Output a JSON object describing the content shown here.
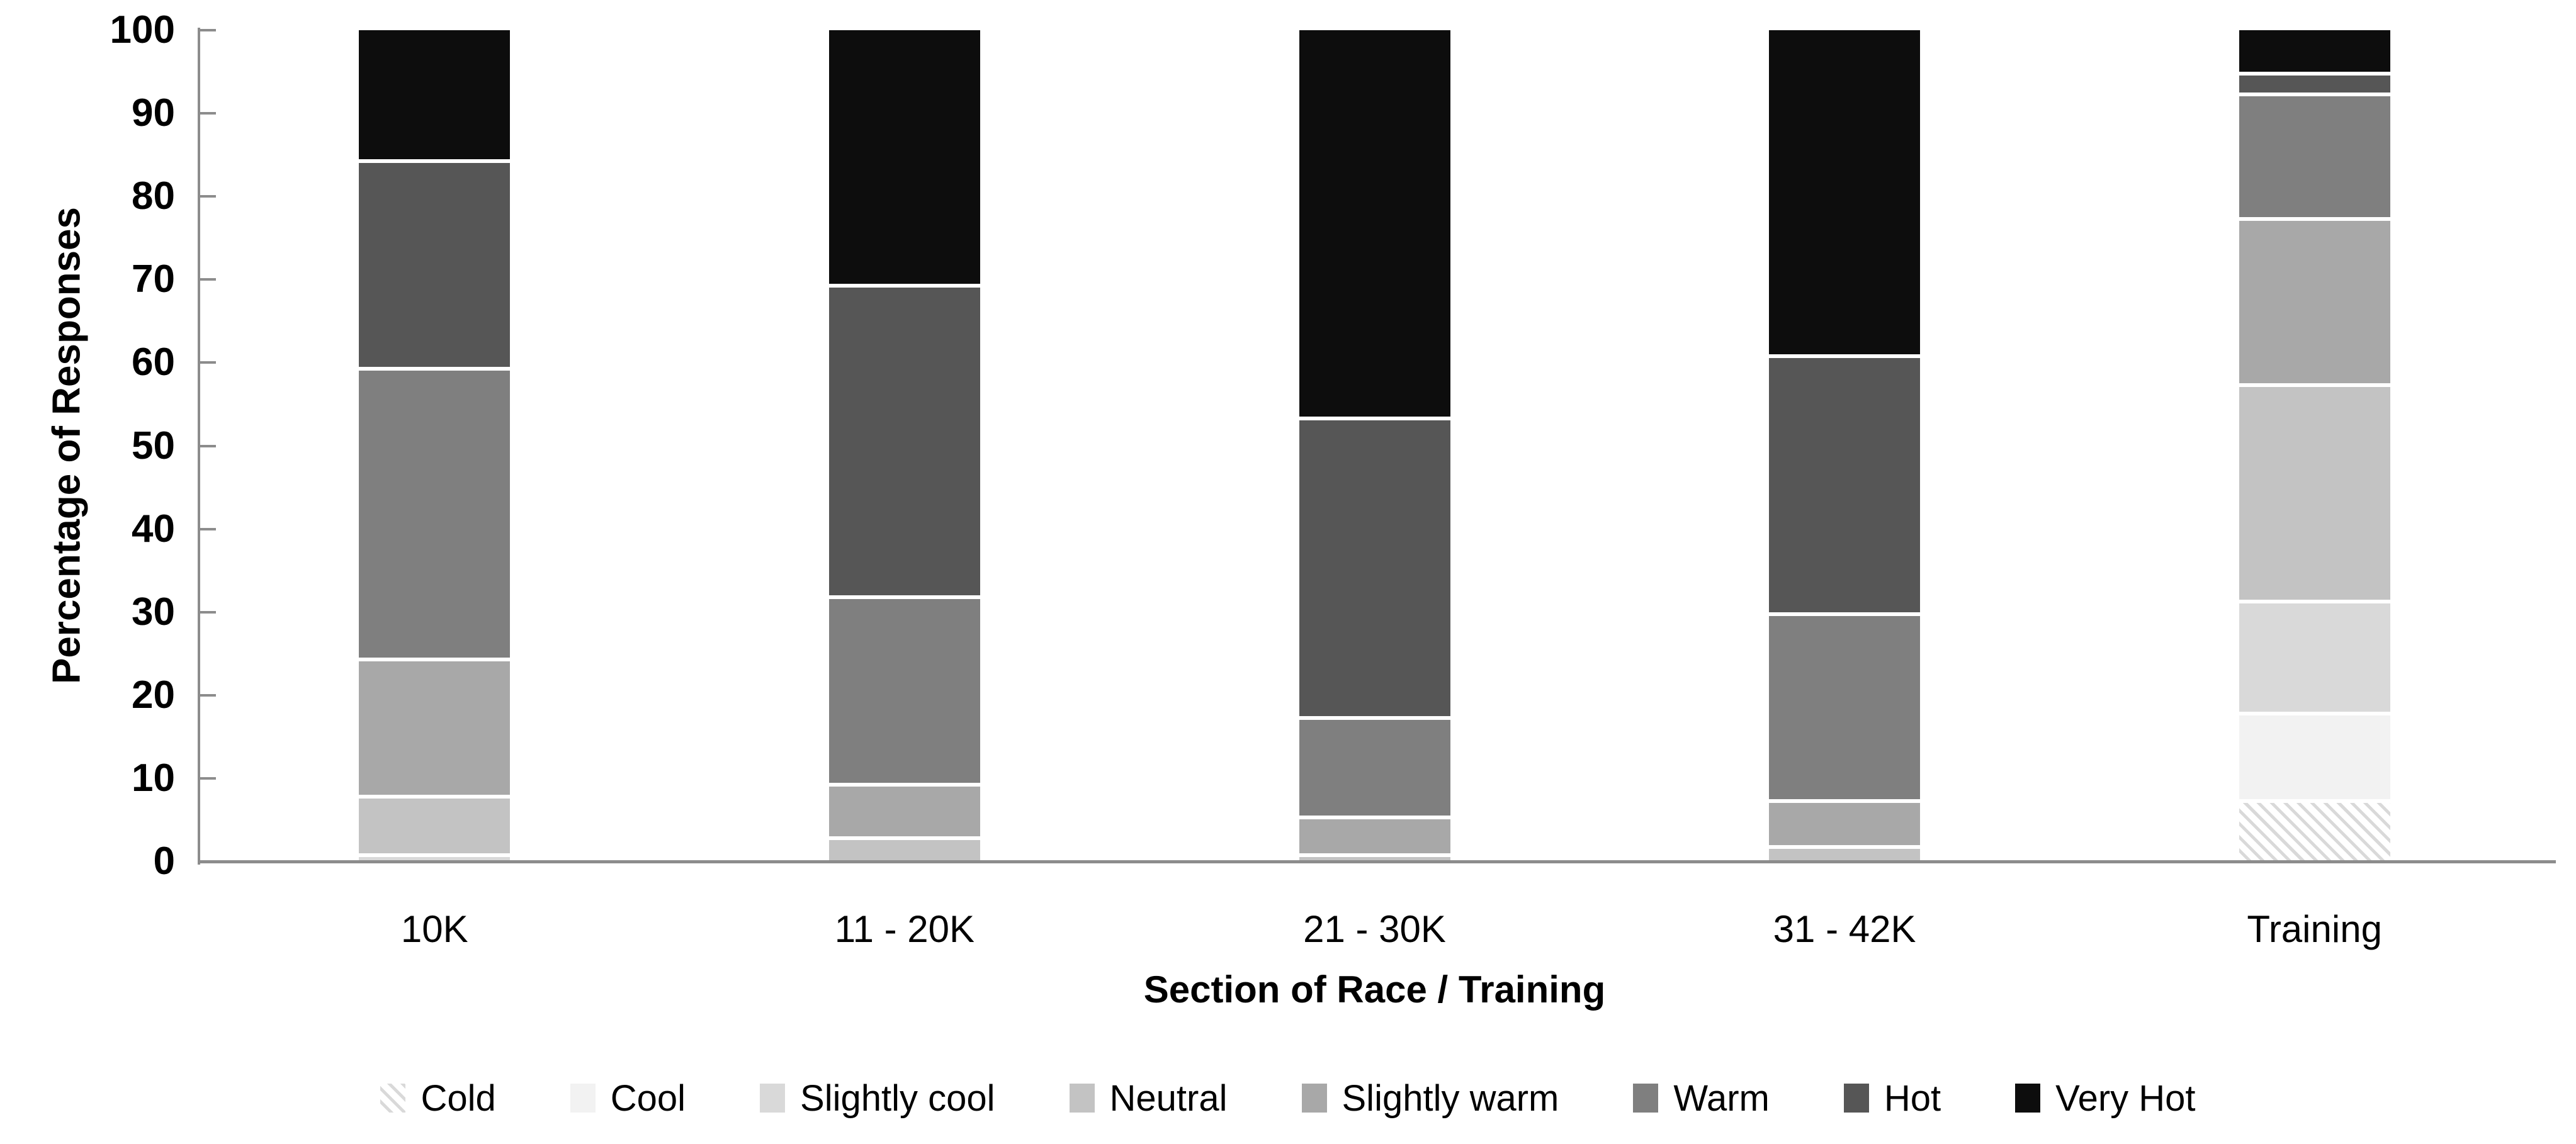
{
  "chart_data": {
    "type": "bar",
    "stacked": true,
    "orientation": "vertical",
    "title": "",
    "xlabel": "Section of Race / Training",
    "ylabel": "Percentage of Responses",
    "ylim": [
      0,
      100
    ],
    "y_axis": {
      "min": 0,
      "max": 100,
      "tick_step": 10,
      "ticks": [
        0,
        10,
        20,
        30,
        40,
        50,
        60,
        70,
        80,
        90,
        100
      ]
    },
    "grid": "off",
    "legend_position": "bottom",
    "categories": [
      "10K",
      "11 - 20K",
      "21 - 30K",
      "31 - 42K",
      "Training"
    ],
    "series": [
      {
        "name": "Cold",
        "hatch": true,
        "color": "#d9d9d9",
        "values": [
          0,
          0,
          0,
          0,
          7.5
        ]
      },
      {
        "name": "Cool",
        "hatch": false,
        "color": "#f2f2f2",
        "values": [
          0,
          0,
          0,
          0,
          10.5
        ]
      },
      {
        "name": "Slightly cool",
        "hatch": false,
        "color": "#d9d9d9",
        "values": [
          1,
          0,
          0,
          0,
          13.5
        ]
      },
      {
        "name": "Neutral",
        "hatch": false,
        "color": "#c3c3c3",
        "values": [
          7,
          3,
          1,
          2,
          26
        ]
      },
      {
        "name": "Slightly warm",
        "hatch": false,
        "color": "#a8a8a8",
        "values": [
          16.5,
          6.5,
          4.5,
          5.5,
          20
        ]
      },
      {
        "name": "Warm",
        "hatch": false,
        "color": "#7f7f7f",
        "values": [
          35,
          22.5,
          12,
          22.5,
          15
        ]
      },
      {
        "name": "Hot",
        "hatch": false,
        "color": "#565656",
        "values": [
          25,
          37.5,
          36,
          31,
          2.5
        ]
      },
      {
        "name": "Very Hot",
        "hatch": false,
        "color": "#0d0d0d",
        "values": [
          15.5,
          30.5,
          46.5,
          39,
          5
        ]
      }
    ],
    "axis_color": "#8c8c8c",
    "separator_color": "#ffffff"
  }
}
